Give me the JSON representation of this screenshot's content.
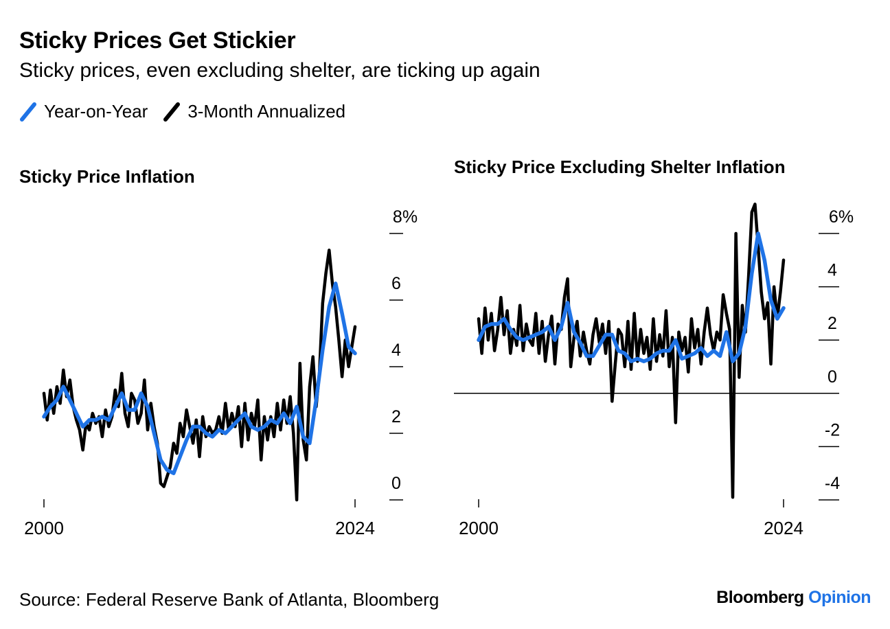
{
  "title": "Sticky Prices Get Stickier",
  "subtitle": "Sticky prices, even excluding shelter, are ticking up again",
  "legend": [
    {
      "label": "Year-on-Year",
      "color": "#1f73e6",
      "icon": "diagonal-stroke"
    },
    {
      "label": "3-Month Annualized",
      "color": "#000000",
      "icon": "diagonal-stroke"
    }
  ],
  "source": "Source: Federal Reserve Bank of Atlanta, Bloomberg",
  "brand": {
    "name": "Bloomberg",
    "suffix": "Opinion",
    "accent": "#1f73e6"
  },
  "chart_data": [
    {
      "type": "line",
      "title": "Sticky Price Inflation",
      "xlim": [
        2000,
        2024
      ],
      "ylim": [
        0,
        8
      ],
      "x_ticks": [
        "2000",
        "2024"
      ],
      "y_ticks": [
        "0",
        "2",
        "4",
        "6",
        "8%"
      ],
      "y_axis_position": "right",
      "series": [
        {
          "name": "Year-on-Year",
          "color": "#1f73e6",
          "x": [
            2000,
            2000.5,
            2001,
            2001.5,
            2002,
            2002.5,
            2003,
            2003.5,
            2004,
            2004.5,
            2005,
            2005.5,
            2006,
            2006.5,
            2007,
            2007.5,
            2008,
            2008.5,
            2009,
            2009.5,
            2010,
            2010.5,
            2011,
            2011.5,
            2012,
            2012.5,
            2013,
            2013.5,
            2014,
            2014.5,
            2015,
            2015.5,
            2016,
            2016.5,
            2017,
            2017.5,
            2018,
            2018.5,
            2019,
            2019.5,
            2020,
            2020.5,
            2021,
            2021.5,
            2022,
            2022.5,
            2023,
            2023.5,
            2024
          ],
          "y": [
            2.5,
            2.8,
            3.0,
            3.4,
            3.0,
            2.6,
            2.2,
            2.4,
            2.4,
            2.5,
            2.4,
            2.8,
            3.2,
            2.7,
            2.7,
            3.2,
            2.8,
            2.0,
            1.2,
            0.9,
            0.8,
            1.3,
            1.8,
            2.2,
            2.2,
            2.0,
            1.9,
            2.1,
            2.0,
            2.2,
            2.4,
            2.6,
            2.2,
            2.1,
            2.2,
            2.4,
            2.3,
            2.6,
            2.3,
            2.8,
            1.9,
            1.7,
            3.0,
            4.5,
            5.8,
            6.5,
            5.6,
            4.6,
            4.4
          ]
        },
        {
          "name": "3-Month Annualized",
          "color": "#000000",
          "x": [
            2000,
            2000.25,
            2000.5,
            2000.75,
            2001,
            2001.25,
            2001.5,
            2001.75,
            2002,
            2002.25,
            2002.5,
            2002.75,
            2003,
            2003.25,
            2003.5,
            2003.75,
            2004,
            2004.25,
            2004.5,
            2004.75,
            2005,
            2005.25,
            2005.5,
            2005.75,
            2006,
            2006.25,
            2006.5,
            2006.75,
            2007,
            2007.25,
            2007.5,
            2007.75,
            2008,
            2008.25,
            2008.5,
            2008.75,
            2009,
            2009.25,
            2009.5,
            2009.75,
            2010,
            2010.25,
            2010.5,
            2010.75,
            2011,
            2011.25,
            2011.5,
            2011.75,
            2012,
            2012.25,
            2012.5,
            2012.75,
            2013,
            2013.25,
            2013.5,
            2013.75,
            2014,
            2014.25,
            2014.5,
            2014.75,
            2015,
            2015.25,
            2015.5,
            2015.75,
            2016,
            2016.25,
            2016.5,
            2016.75,
            2017,
            2017.25,
            2017.5,
            2017.75,
            2018,
            2018.25,
            2018.5,
            2018.75,
            2019,
            2019.25,
            2019.5,
            2019.75,
            2020,
            2020.25,
            2020.5,
            2020.75,
            2021,
            2021.25,
            2021.5,
            2021.75,
            2022,
            2022.25,
            2022.5,
            2022.75,
            2023,
            2023.25,
            2023.5,
            2023.75,
            2024
          ],
          "y": [
            3.2,
            2.4,
            3.3,
            2.6,
            3.4,
            2.9,
            3.9,
            3.1,
            3.6,
            2.8,
            2.4,
            2.1,
            1.5,
            2.3,
            2.1,
            2.6,
            2.3,
            2.5,
            1.9,
            2.7,
            2.2,
            2.5,
            3.3,
            2.8,
            3.8,
            2.6,
            2.2,
            3.2,
            3.0,
            2.3,
            2.6,
            3.6,
            2.1,
            2.9,
            2.2,
            1.7,
            0.5,
            0.4,
            0.7,
            1.0,
            1.7,
            1.4,
            2.3,
            1.9,
            2.7,
            2.2,
            1.7,
            2.4,
            1.3,
            2.5,
            1.9,
            2.2,
            2.0,
            2.1,
            2.5,
            2.0,
            2.9,
            2.1,
            2.6,
            2.2,
            2.8,
            1.6,
            2.9,
            1.8,
            2.6,
            2.2,
            3.0,
            1.2,
            2.5,
            1.8,
            2.5,
            1.9,
            2.9,
            2.1,
            3.0,
            2.3,
            3.1,
            2.0,
            0.0,
            4.1,
            1.8,
            1.2,
            3.4,
            4.3,
            2.8,
            3.8,
            5.9,
            6.8,
            7.5,
            6.5,
            5.8,
            4.8,
            3.7,
            4.8,
            4.0,
            4.6,
            5.2
          ]
        }
      ]
    },
    {
      "type": "line",
      "title": "Sticky Price Excluding Shelter Inflation",
      "xlim": [
        2000,
        2024
      ],
      "ylim": [
        -4,
        6
      ],
      "x_ticks": [
        "2000",
        "2024"
      ],
      "y_ticks": [
        "-4",
        "-2",
        "0",
        "2",
        "4",
        "6%"
      ],
      "y_axis_position": "right",
      "zero_line": true,
      "series": [
        {
          "name": "Year-on-Year",
          "color": "#1f73e6",
          "x": [
            2000,
            2000.5,
            2001,
            2001.5,
            2002,
            2002.5,
            2003,
            2003.5,
            2004,
            2004.5,
            2005,
            2005.5,
            2006,
            2006.5,
            2007,
            2007.5,
            2008,
            2008.5,
            2009,
            2009.5,
            2010,
            2010.5,
            2011,
            2011.5,
            2012,
            2012.5,
            2013,
            2013.5,
            2014,
            2014.5,
            2015,
            2015.5,
            2016,
            2016.5,
            2017,
            2017.5,
            2018,
            2018.5,
            2019,
            2019.5,
            2020,
            2020.5,
            2021,
            2021.5,
            2022,
            2022.5,
            2023,
            2023.5,
            2024
          ],
          "y": [
            2.0,
            2.5,
            2.6,
            2.6,
            2.8,
            2.4,
            2.1,
            2.0,
            2.1,
            2.2,
            2.3,
            2.5,
            2.0,
            2.5,
            3.4,
            2.3,
            1.9,
            1.4,
            1.4,
            1.8,
            2.2,
            2.2,
            1.6,
            1.5,
            1.2,
            1.3,
            1.2,
            1.3,
            1.5,
            1.6,
            1.6,
            2.0,
            1.3,
            1.4,
            1.5,
            1.7,
            1.4,
            1.6,
            1.4,
            2.3,
            1.2,
            1.5,
            2.5,
            4.5,
            6.0,
            5.0,
            3.5,
            2.8,
            3.2
          ]
        },
        {
          "name": "3-Month Annualized",
          "color": "#000000",
          "x": [
            2000,
            2000.25,
            2000.5,
            2000.75,
            2001,
            2001.25,
            2001.5,
            2001.75,
            2002,
            2002.25,
            2002.5,
            2002.75,
            2003,
            2003.25,
            2003.5,
            2003.75,
            2004,
            2004.25,
            2004.5,
            2004.75,
            2005,
            2005.25,
            2005.5,
            2005.75,
            2006,
            2006.25,
            2006.5,
            2006.75,
            2007,
            2007.25,
            2007.5,
            2007.75,
            2008,
            2008.25,
            2008.5,
            2008.75,
            2009,
            2009.25,
            2009.5,
            2009.75,
            2010,
            2010.25,
            2010.5,
            2010.75,
            2011,
            2011.25,
            2011.5,
            2011.75,
            2012,
            2012.25,
            2012.5,
            2012.75,
            2013,
            2013.25,
            2013.5,
            2013.75,
            2014,
            2014.25,
            2014.5,
            2014.75,
            2015,
            2015.25,
            2015.5,
            2015.75,
            2016,
            2016.25,
            2016.5,
            2016.75,
            2017,
            2017.25,
            2017.5,
            2017.75,
            2018,
            2018.25,
            2018.5,
            2018.75,
            2019,
            2019.25,
            2019.5,
            2019.75,
            2020,
            2020.25,
            2020.5,
            2020.75,
            2021,
            2021.25,
            2021.5,
            2021.75,
            2022,
            2022.25,
            2022.5,
            2022.75,
            2023,
            2023.25,
            2023.5,
            2023.75,
            2024
          ],
          "y": [
            2.8,
            1.5,
            3.2,
            2.0,
            3.0,
            1.6,
            2.4,
            3.6,
            2.2,
            3.1,
            1.5,
            2.4,
            1.8,
            3.3,
            1.6,
            2.6,
            2.0,
            1.8,
            3.0,
            1.5,
            2.7,
            1.2,
            2.2,
            2.9,
            1.1,
            2.6,
            2.4,
            3.6,
            4.3,
            1.0,
            2.1,
            2.7,
            1.4,
            2.3,
            1.6,
            1.1,
            2.2,
            2.8,
            1.9,
            2.6,
            1.5,
            2.7,
            -0.3,
            1.1,
            2.4,
            2.2,
            1.0,
            2.7,
            0.9,
            3.0,
            1.2,
            2.4,
            1.5,
            2.1,
            0.9,
            2.8,
            1.2,
            2.2,
            1.4,
            3.1,
            1.0,
            2.1,
            -1.1,
            2.3,
            1.6,
            2.1,
            0.8,
            2.8,
            1.7,
            2.4,
            1.1,
            2.3,
            3.2,
            2.2,
            1.6,
            2.3,
            2.0,
            3.7,
            3.0,
            2.4,
            -3.9,
            6.0,
            0.6,
            3.3,
            2.3,
            4.4,
            6.8,
            7.1,
            5.5,
            3.8,
            2.8,
            3.4,
            1.1,
            4.0,
            2.8,
            3.8,
            5.0
          ]
        }
      ]
    }
  ]
}
